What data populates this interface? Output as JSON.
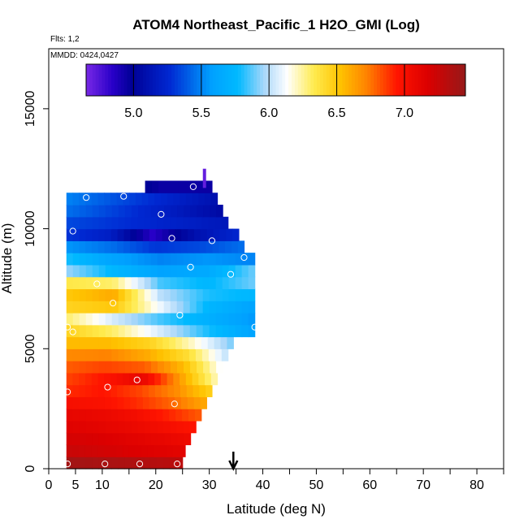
{
  "chart_data": {
    "type": "heatmap",
    "title": "ATOM4 Northeast_Pacific_1 H2O_GMI (Log)",
    "flights_note": "Flts: 1,2",
    "dates_note": "MMDD: 0424,0427",
    "xlabel": "Latitude (deg N)",
    "ylabel": "Altitude (m)",
    "xlim": [
      0,
      85
    ],
    "ylim": [
      0,
      17500
    ],
    "x_ticks": [
      0,
      5,
      10,
      20,
      30,
      40,
      50,
      60,
      70,
      80
    ],
    "y_ticks": [
      0,
      5000,
      10000,
      15000
    ],
    "colorbar": {
      "min": 4.65,
      "max": 7.45,
      "ticks": [
        5.0,
        5.5,
        6.0,
        6.5,
        7.0
      ],
      "tick_labels": [
        "5.0",
        "5.5",
        "6.0",
        "6.5",
        "7.0"
      ]
    },
    "layers": [
      {
        "alt0": 0,
        "alt1": 500,
        "lat0": 3.3,
        "lat1": 25.0,
        "v": [
          7.4,
          7.38,
          7.36,
          7.33,
          7.3
        ]
      },
      {
        "alt0": 500,
        "alt1": 1000,
        "lat0": 3.3,
        "lat1": 25.5,
        "v": [
          7.25,
          7.22,
          7.18,
          7.15,
          7.12
        ]
      },
      {
        "alt0": 1000,
        "alt1": 1500,
        "lat0": 3.3,
        "lat1": 26.5,
        "v": [
          7.2,
          7.18,
          7.14,
          7.1,
          7.05
        ]
      },
      {
        "alt0": 1500,
        "alt1": 2000,
        "lat0": 3.3,
        "lat1": 27.5,
        "v": [
          7.15,
          7.12,
          7.08,
          7.02,
          6.95
        ]
      },
      {
        "alt0": 2000,
        "alt1": 2500,
        "lat0": 3.3,
        "lat1": 28.5,
        "v": [
          7.1,
          7.08,
          7.02,
          6.92,
          6.8
        ]
      },
      {
        "alt0": 2500,
        "alt1": 3000,
        "lat0": 3.3,
        "lat1": 29.5,
        "v": [
          7.0,
          6.98,
          6.9,
          6.78,
          6.6
        ]
      },
      {
        "alt0": 3000,
        "alt1": 3500,
        "lat0": 3.3,
        "lat1": 30.5,
        "v": [
          6.9,
          6.95,
          6.85,
          6.7,
          6.45
        ]
      },
      {
        "alt0": 3500,
        "alt1": 4000,
        "lat0": 3.3,
        "lat1": 31.5,
        "v": [
          6.85,
          6.95,
          7.1,
          6.65,
          6.2
        ]
      },
      {
        "alt0": 4000,
        "alt1": 4500,
        "lat0": 3.3,
        "lat1": 32.5,
        "v": [
          6.8,
          6.85,
          6.8,
          6.55,
          6.1
        ]
      },
      {
        "alt0": 4500,
        "alt1": 5000,
        "lat0": 3.3,
        "lat1": 33.5,
        "v": [
          6.7,
          6.72,
          6.6,
          6.4,
          6.0
        ]
      },
      {
        "alt0": 5000,
        "alt1": 5500,
        "lat0": 3.3,
        "lat1": 34.5,
        "v": [
          6.55,
          6.55,
          6.45,
          6.2,
          5.9
        ]
      },
      {
        "alt0": 5500,
        "alt1": 6000,
        "lat0": 3.3,
        "lat1": 38.5,
        "v": [
          6.45,
          6.3,
          6.05,
          5.8,
          5.6
        ]
      },
      {
        "alt0": 6000,
        "alt1": 6500,
        "lat0": 3.3,
        "lat1": 38.5,
        "v": [
          6.3,
          6.05,
          5.85,
          5.7,
          5.55
        ]
      },
      {
        "alt0": 6500,
        "alt1": 7000,
        "lat0": 3.3,
        "lat1": 38.5,
        "v": [
          6.45,
          6.5,
          6.1,
          5.75,
          5.6
        ]
      },
      {
        "alt0": 7000,
        "alt1": 7500,
        "lat0": 3.3,
        "lat1": 38.5,
        "v": [
          6.5,
          6.6,
          6.0,
          5.8,
          5.75
        ]
      },
      {
        "alt0": 7500,
        "alt1": 8000,
        "lat0": 3.3,
        "lat1": 38.5,
        "v": [
          6.35,
          6.3,
          5.85,
          5.75,
          5.9
        ]
      },
      {
        "alt0": 8000,
        "alt1": 8500,
        "lat0": 3.3,
        "lat1": 38.5,
        "v": [
          5.95,
          5.75,
          5.6,
          5.65,
          5.9
        ]
      },
      {
        "alt0": 8500,
        "alt1": 9000,
        "lat0": 3.3,
        "lat1": 38.5,
        "v": [
          5.8,
          5.6,
          5.5,
          5.55,
          5.5
        ]
      },
      {
        "alt0": 9000,
        "alt1": 9500,
        "lat0": 3.3,
        "lat1": 36.5,
        "v": [
          5.55,
          5.45,
          5.3,
          5.35,
          5.45
        ]
      },
      {
        "alt0": 9500,
        "alt1": 10000,
        "lat0": 3.3,
        "lat1": 35.5,
        "v": [
          5.3,
          5.2,
          4.85,
          5.1,
          5.25
        ]
      },
      {
        "alt0": 10000,
        "alt1": 10500,
        "lat0": 3.3,
        "lat1": 33.5,
        "v": [
          5.35,
          5.3,
          5.25,
          5.2,
          5.15
        ]
      },
      {
        "alt0": 10500,
        "alt1": 11000,
        "lat0": 3.3,
        "lat1": 32.5,
        "v": [
          5.45,
          5.35,
          5.25,
          5.15,
          5.05
        ]
      },
      {
        "alt0": 11000,
        "alt1": 11500,
        "lat0": 3.3,
        "lat1": 31.5,
        "v": [
          5.5,
          5.4,
          5.3,
          5.2,
          5.1
        ]
      },
      {
        "alt0": 11500,
        "alt1": 12000,
        "lat0": 18.0,
        "lat1": 30.5,
        "v": [
          5.0,
          4.95,
          4.95,
          4.95,
          4.95
        ]
      }
    ],
    "streak": {
      "lat0": 28.8,
      "lat1": 29.4,
      "alt0": 11700,
      "alt1": 12500,
      "v": 4.7
    },
    "sample_points": [
      [
        3.5,
        200
      ],
      [
        10.5,
        200
      ],
      [
        17.0,
        200
      ],
      [
        24.0,
        200
      ],
      [
        3.5,
        3200
      ],
      [
        11.0,
        3400
      ],
      [
        16.5,
        3700
      ],
      [
        23.5,
        2700
      ],
      [
        4.5,
        5700
      ],
      [
        3.5,
        5900
      ],
      [
        24.5,
        6400
      ],
      [
        38.5,
        5900
      ],
      [
        12.0,
        6900
      ],
      [
        9.0,
        7700
      ],
      [
        34.0,
        8100
      ],
      [
        26.5,
        8400
      ],
      [
        36.5,
        8800
      ],
      [
        39.5,
        8400
      ],
      [
        4.5,
        9900
      ],
      [
        23.0,
        9600
      ],
      [
        30.5,
        9500
      ],
      [
        21.0,
        10600
      ],
      [
        7.0,
        11300
      ],
      [
        14.0,
        11350
      ],
      [
        27.0,
        11750
      ]
    ],
    "marker_latitude": 34.5
  }
}
